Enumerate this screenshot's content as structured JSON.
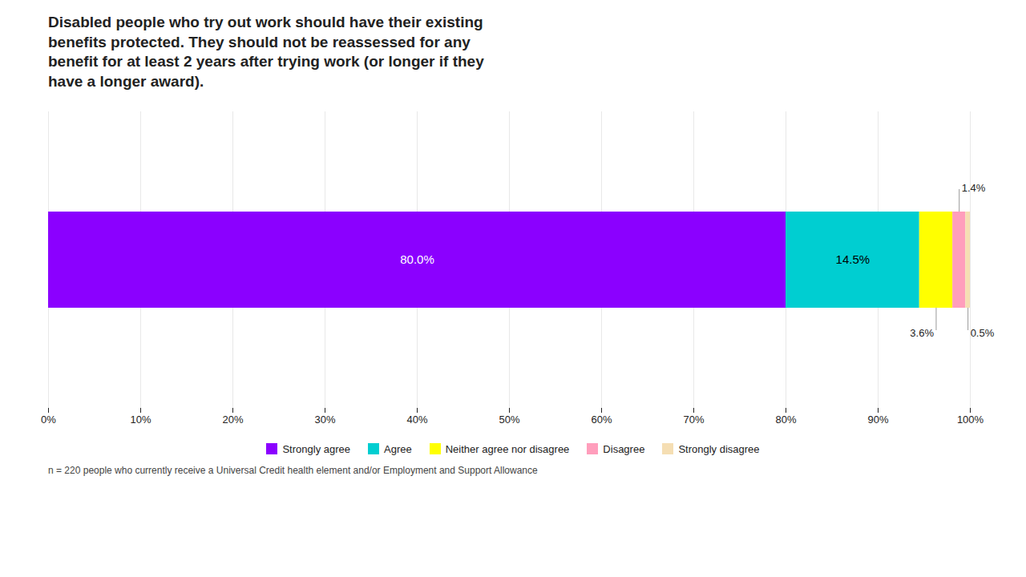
{
  "chart_data": {
    "type": "bar",
    "orientation": "horizontal",
    "stacked": true,
    "data_labels": true,
    "title": "Disabled people who try out work should have their existing\nbenefits protected. They should not be reassessed for any\nbenefit for at least 2 years after trying work (or longer if they\nhave a longer award).",
    "caption": "n = 220 people who currently receive a Universal Credit health element and/or Employment and Support Allowance",
    "categories": [
      null
    ],
    "series": [
      {
        "name": "Strongly agree",
        "color": "#8B00FF",
        "values": [
          80.0
        ],
        "value_labels": [
          "80.0%"
        ]
      },
      {
        "name": "Agree",
        "color": "#00CED1",
        "values": [
          14.5
        ],
        "value_labels": [
          "14.5%"
        ]
      },
      {
        "name": "Neither agree nor disagree",
        "color": "#FFFF00",
        "values": [
          3.6
        ],
        "value_labels": [
          "3.6%"
        ]
      },
      {
        "name": "Disagree",
        "color": "#FF9EBC",
        "values": [
          1.4
        ],
        "value_labels": [
          "1.4%"
        ]
      },
      {
        "name": "Strongly disagree",
        "color": "#F5DEB3",
        "values": [
          0.5
        ],
        "value_labels": [
          "0.5%"
        ]
      }
    ],
    "xlim": [
      0,
      100
    ],
    "xticks": [
      {
        "value": 0,
        "label": "0%"
      },
      {
        "value": 10,
        "label": "10%"
      },
      {
        "value": 20,
        "label": "20%"
      },
      {
        "value": 30,
        "label": "30%"
      },
      {
        "value": 40,
        "label": "40%"
      },
      {
        "value": 50,
        "label": "50%"
      },
      {
        "value": 60,
        "label": "60%"
      },
      {
        "value": 70,
        "label": "70%"
      },
      {
        "value": 80,
        "label": "80%"
      },
      {
        "value": 90,
        "label": "90%"
      },
      {
        "value": 100,
        "label": "100%"
      }
    ],
    "grid": true,
    "legend": "bottom",
    "tick_labels": "x"
  }
}
